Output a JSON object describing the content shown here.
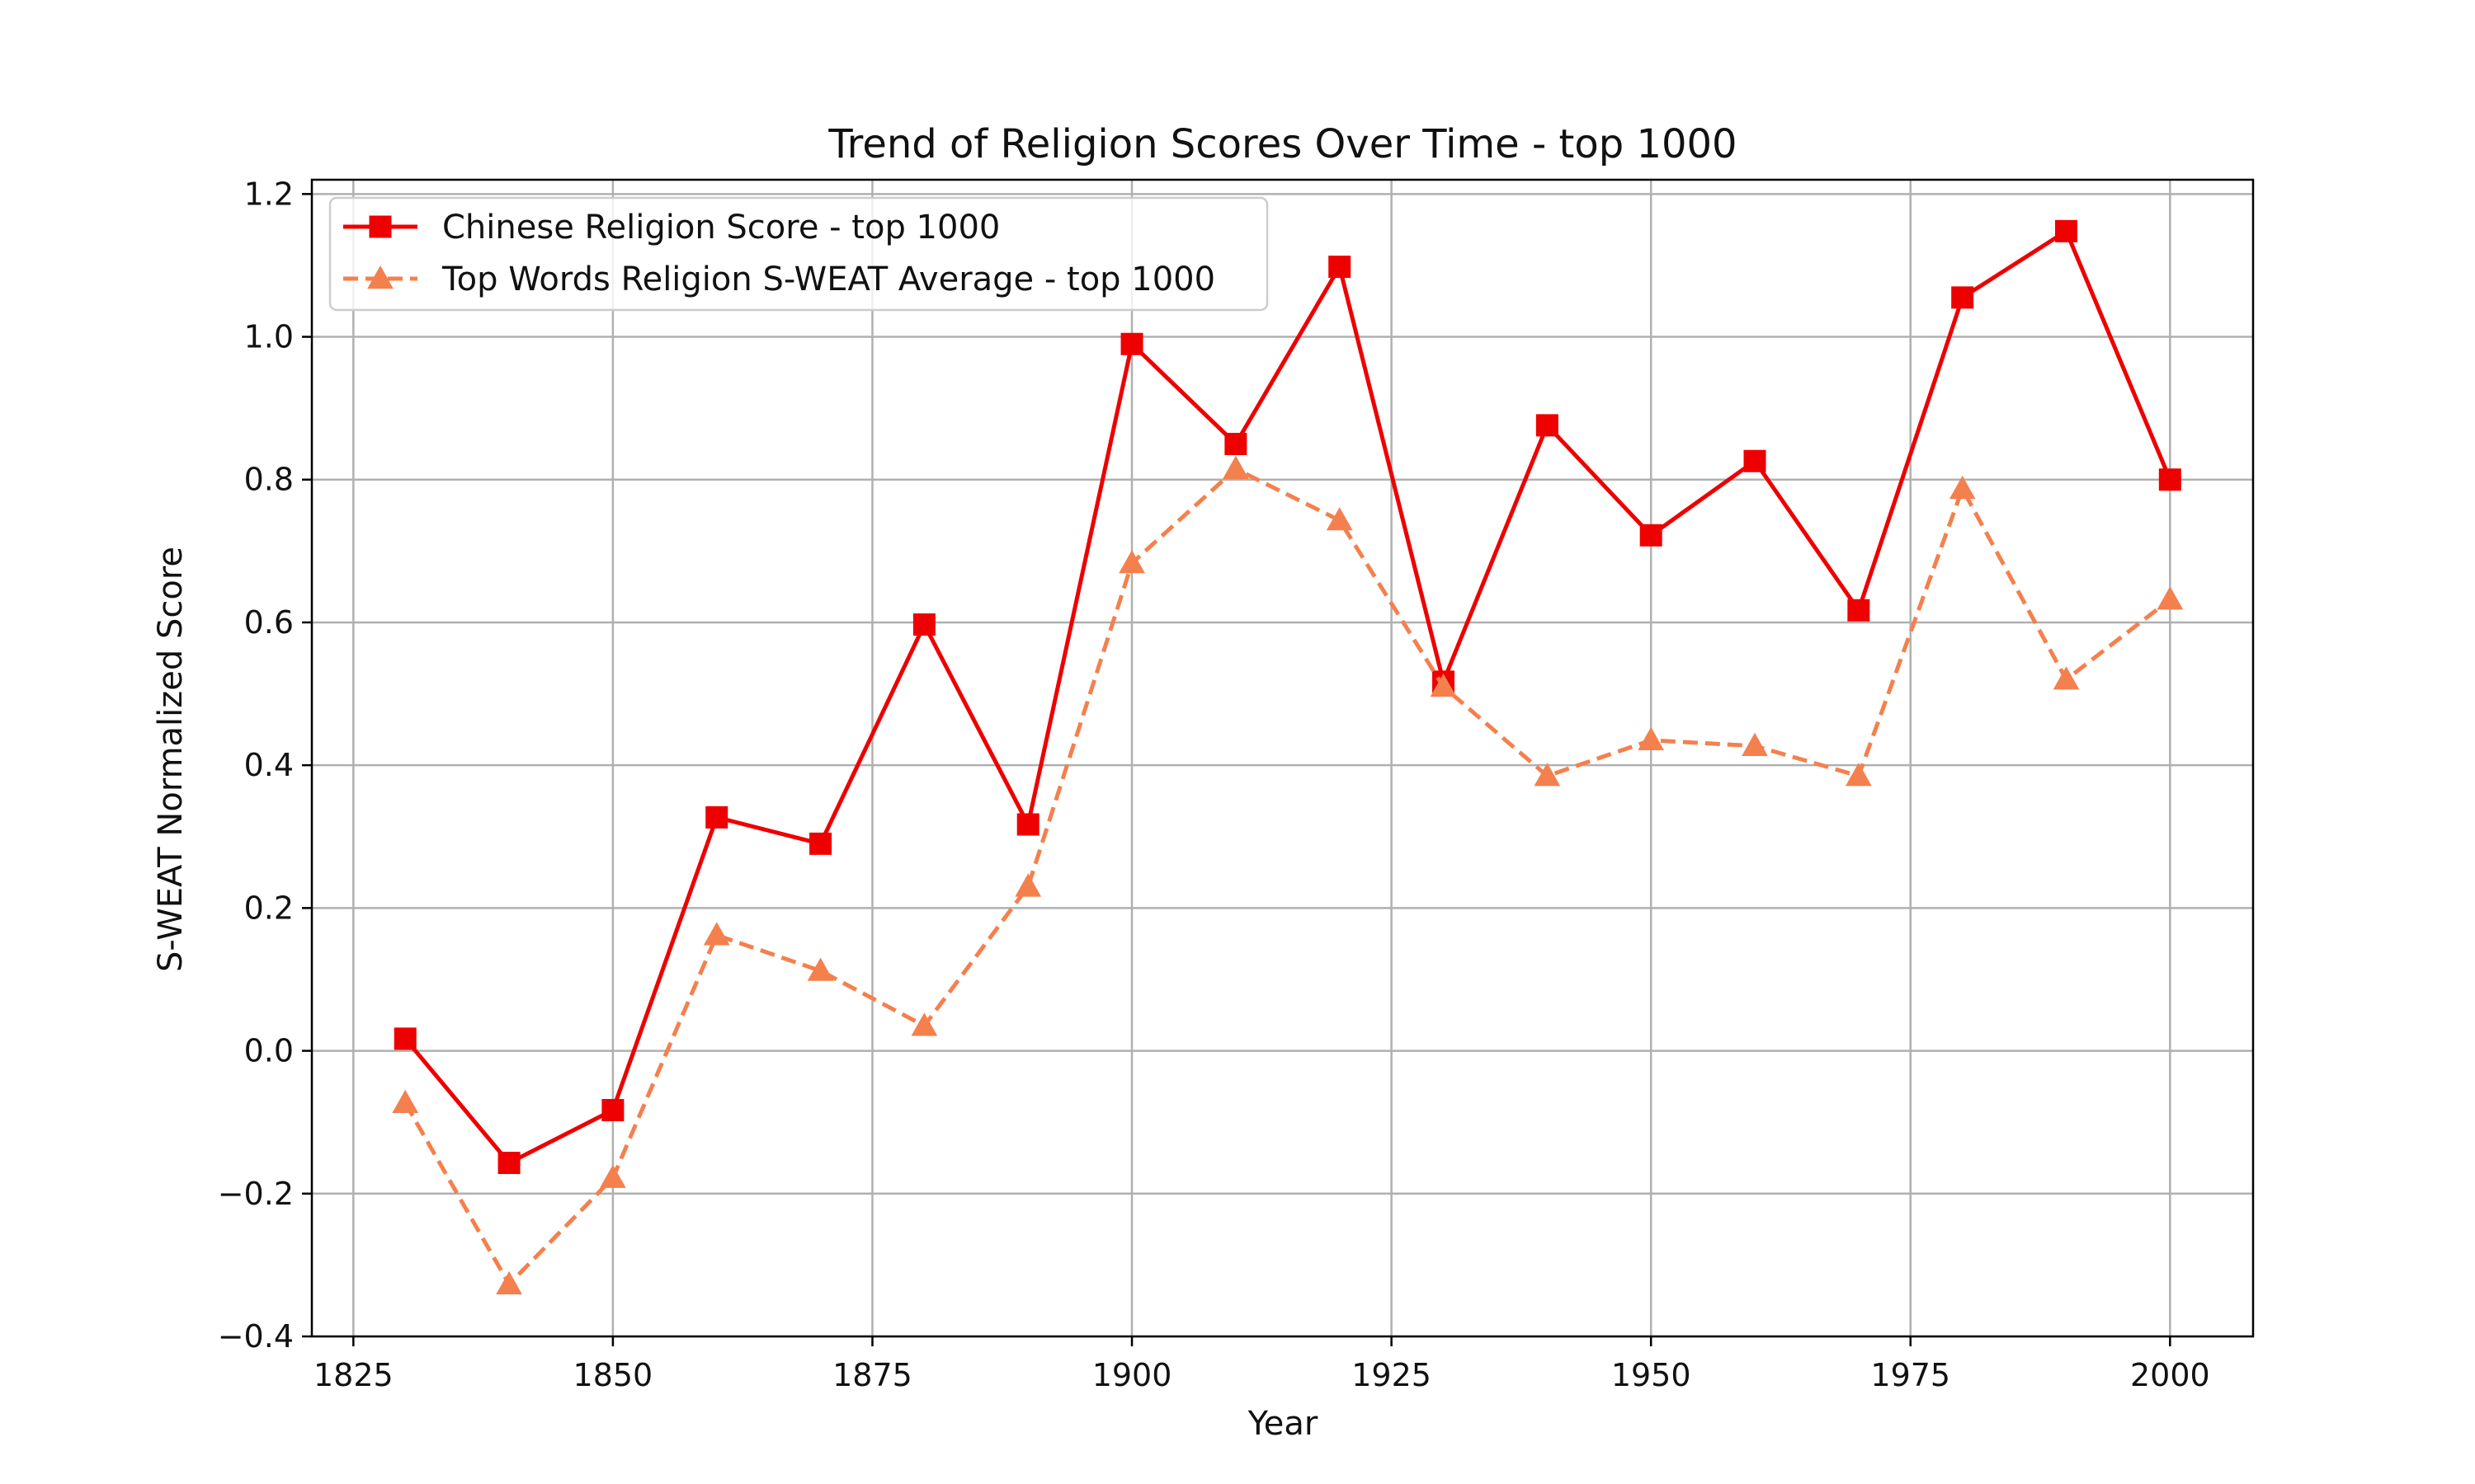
{
  "chart_data": {
    "type": "line",
    "title": "Trend of Religion Scores Over Time - top 1000",
    "xlabel": "Year",
    "ylabel": "S-WEAT Normalized Score",
    "xlim": [
      1821,
      2008
    ],
    "ylim": [
      -0.4,
      1.22
    ],
    "xticks": [
      1825,
      1850,
      1875,
      1900,
      1925,
      1950,
      1975,
      2000
    ],
    "xtick_labels": [
      "1825",
      "1850",
      "1875",
      "1900",
      "1925",
      "1950",
      "1975",
      "2000"
    ],
    "yticks": [
      -0.4,
      -0.2,
      0.0,
      0.2,
      0.4,
      0.6,
      0.8,
      1.0,
      1.2
    ],
    "ytick_labels": [
      "−0.4",
      "−0.2",
      "0.0",
      "0.2",
      "0.4",
      "0.6",
      "0.8",
      "1.0",
      "1.2"
    ],
    "grid": true,
    "legend_position": "top-left",
    "x": [
      1830,
      1840,
      1850,
      1860,
      1870,
      1880,
      1890,
      1900,
      1910,
      1920,
      1930,
      1940,
      1950,
      1960,
      1970,
      1980,
      1990,
      2000
    ],
    "series": [
      {
        "name": "Chinese Religion Score - top 1000",
        "color": "#ee0000",
        "marker": "square",
        "linestyle": "solid",
        "values": [
          0.017,
          -0.157,
          -0.083,
          0.327,
          0.29,
          0.597,
          0.317,
          0.99,
          0.85,
          1.098,
          0.517,
          0.876,
          0.722,
          0.826,
          0.617,
          1.055,
          1.148,
          0.8
        ]
      },
      {
        "name": "Top Words Religion S-WEAT Average - top 1000",
        "color": "#f4804e",
        "marker": "triangle",
        "linestyle": "dashed",
        "values": [
          -0.073,
          -0.327,
          -0.178,
          0.162,
          0.112,
          0.035,
          0.23,
          0.683,
          0.815,
          0.743,
          0.51,
          0.385,
          0.435,
          0.427,
          0.385,
          0.787,
          0.52,
          0.632
        ]
      }
    ]
  }
}
